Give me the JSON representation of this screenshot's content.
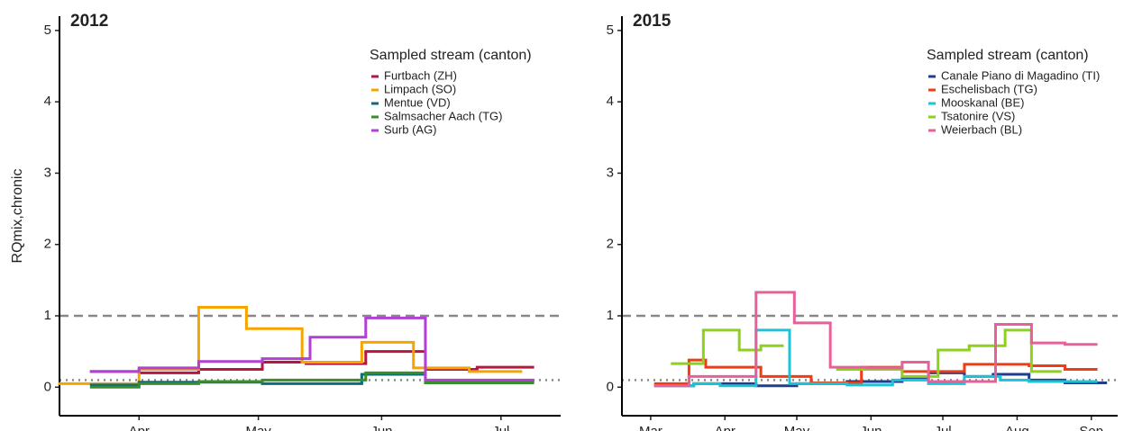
{
  "chart_data": [
    {
      "type": "line",
      "step": "post",
      "title": "2012",
      "y_label": "RQmix,chronic",
      "legend_title": "Sampled stream (canton)",
      "legend_position": "top-right",
      "grid": false,
      "xlim": [
        72,
        198
      ],
      "xticks": [
        {
          "value": 92,
          "label": "Apr"
        },
        {
          "value": 122,
          "label": "May"
        },
        {
          "value": 153,
          "label": "Jun"
        },
        {
          "value": 183,
          "label": "Jul"
        }
      ],
      "ylim": [
        -0.4,
        5.2
      ],
      "yticks": [
        0,
        1,
        2,
        3,
        4,
        5
      ],
      "hlines": [
        {
          "value": 1,
          "style": "dashed",
          "color": "#888888"
        },
        {
          "value": 0.1,
          "style": "dotted",
          "color": "#888888"
        }
      ],
      "series": [
        {
          "name": "Furtbach (ZH)",
          "color": "#b5173f",
          "x": [
            80,
            92,
            107,
            123,
            134,
            149,
            164,
            177,
            191
          ],
          "values": [
            0.22,
            0.2,
            0.25,
            0.35,
            0.33,
            0.5,
            0.25,
            0.28,
            null
          ]
        },
        {
          "name": "Limpach (SO)",
          "color": "#f5a400",
          "x": [
            72,
            92,
            107,
            119,
            133,
            148,
            161,
            175,
            188
          ],
          "values": [
            0.05,
            0.25,
            1.12,
            0.82,
            0.35,
            0.63,
            0.27,
            0.22,
            null
          ]
        },
        {
          "name": "Mentue (VD)",
          "color": "#0a6e74",
          "x": [
            80,
            92,
            123,
            148,
            164,
            191
          ],
          "values": [
            0.03,
            0.07,
            0.05,
            0.18,
            0.08,
            null
          ]
        },
        {
          "name": "Salmsacher Aach (TG)",
          "color": "#3a8d2a",
          "x": [
            80,
            92,
            107,
            123,
            149,
            164,
            191
          ],
          "values": [
            0.0,
            0.05,
            0.08,
            0.1,
            0.2,
            0.06,
            null
          ]
        },
        {
          "name": "Surb (AG)",
          "color": "#b23fd6",
          "x": [
            80,
            92,
            107,
            123,
            135,
            149,
            164,
            191
          ],
          "values": [
            0.22,
            0.27,
            0.36,
            0.4,
            0.7,
            0.97,
            0.1,
            null
          ]
        }
      ]
    },
    {
      "type": "line",
      "step": "post",
      "title": "2015",
      "legend_title": "Sampled stream (canton)",
      "legend_position": "top-right",
      "grid": false,
      "xlim": [
        48,
        255
      ],
      "xticks": [
        {
          "value": 60,
          "label": "Mar"
        },
        {
          "value": 91,
          "label": "Apr"
        },
        {
          "value": 121,
          "label": "May"
        },
        {
          "value": 152,
          "label": "Jun"
        },
        {
          "value": 182,
          "label": "Jul"
        },
        {
          "value": 213,
          "label": "Aug"
        },
        {
          "value": 244,
          "label": "Sep"
        }
      ],
      "ylim": [
        -0.4,
        5.2
      ],
      "yticks": [
        0,
        1,
        2,
        3,
        4,
        5
      ],
      "hlines": [
        {
          "value": 1,
          "style": "dashed",
          "color": "#888888"
        },
        {
          "value": 0.1,
          "style": "dotted",
          "color": "#888888"
        }
      ],
      "series": [
        {
          "name": "Canale Piano di Magadino (TI)",
          "color": "#1f3e8c",
          "x": [
            62,
            78,
            104,
            121,
            142,
            165,
            176,
            191,
            203,
            218,
            233,
            250
          ],
          "values": [
            0.02,
            0.05,
            0.02,
            0.05,
            0.08,
            0.12,
            0.2,
            0.15,
            0.18,
            0.1,
            0.06,
            null
          ]
        },
        {
          "name": "Eschelisbach (TG)",
          "color": "#f03c14",
          "x": [
            62,
            76,
            83,
            106,
            127,
            148,
            165,
            191,
            218,
            233,
            246
          ],
          "values": [
            0.05,
            0.38,
            0.28,
            0.15,
            0.06,
            0.28,
            0.22,
            0.32,
            0.3,
            0.25,
            null
          ]
        },
        {
          "name": "Mooskanal (BE)",
          "color": "#1ac4d6",
          "x": [
            62,
            78,
            89,
            104,
            118,
            142,
            161,
            176,
            191,
            206,
            218,
            246
          ],
          "values": [
            0.02,
            0.05,
            0.02,
            0.8,
            0.05,
            0.03,
            0.1,
            0.05,
            0.15,
            0.1,
            0.08,
            null
          ]
        },
        {
          "name": "Tsatonire (VS)",
          "color": "#8ed11c",
          "x": [
            69,
            82,
            97,
            106,
            115,
            138,
            165,
            180,
            193,
            208,
            219,
            231
          ],
          "values": [
            0.33,
            0.8,
            0.52,
            0.58,
            null,
            0.25,
            0.15,
            0.52,
            0.58,
            0.8,
            0.22,
            null
          ]
        },
        {
          "name": "Weierbach (BL)",
          "color": "#e8609a",
          "x": [
            62,
            76,
            104,
            120,
            135,
            150,
            165,
            176,
            204,
            219,
            233,
            246
          ],
          "values": [
            0.02,
            0.15,
            1.33,
            0.9,
            0.28,
            0.27,
            0.35,
            0.08,
            0.88,
            0.62,
            0.6,
            null
          ]
        }
      ]
    }
  ]
}
